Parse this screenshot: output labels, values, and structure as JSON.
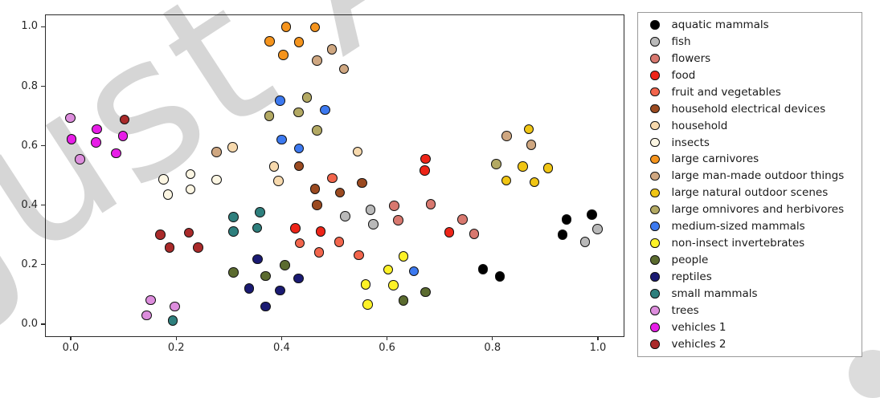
{
  "watermark": {
    "text": "Just Accepted"
  },
  "chart_data": {
    "type": "scatter",
    "title": "",
    "xlabel": "",
    "ylabel": "",
    "x_tick_labels": [
      "0.0",
      "0.2",
      "0.4",
      "0.6",
      "0.8",
      "1.0"
    ],
    "y_tick_labels": [
      "0.0",
      "0.2",
      "0.4",
      "0.6",
      "0.8",
      "1.0"
    ],
    "xlim": [
      -0.0488,
      1.0473
    ],
    "ylim": [
      -0.0378,
      1.0418
    ],
    "grid": false,
    "legend_position": "outside-right",
    "series": [
      {
        "name": "aquatic mammals",
        "color": "#000000",
        "points": [
          [
            0.941,
            0.351
          ],
          [
            0.989,
            0.367
          ],
          [
            0.934,
            0.3
          ],
          [
            0.783,
            0.184
          ],
          [
            0.815,
            0.159
          ]
        ]
      },
      {
        "name": "fish",
        "color": "#b9b9b9",
        "points": [
          [
            0.521,
            0.362
          ],
          [
            0.569,
            0.383
          ],
          [
            0.575,
            0.335
          ],
          [
            1.0,
            0.318
          ],
          [
            0.976,
            0.275
          ]
        ]
      },
      {
        "name": "flowers",
        "color": "#d8786f",
        "points": [
          [
            0.614,
            0.397
          ],
          [
            0.684,
            0.402
          ],
          [
            0.622,
            0.348
          ],
          [
            0.744,
            0.351
          ],
          [
            0.766,
            0.303
          ]
        ]
      },
      {
        "name": "food",
        "color": "#ee2418",
        "points": [
          [
            0.674,
            0.555
          ],
          [
            0.672,
            0.516
          ],
          [
            0.427,
            0.321
          ],
          [
            0.475,
            0.31
          ],
          [
            0.719,
            0.308
          ]
        ]
      },
      {
        "name": "fruit and vegetables",
        "color": "#f2654c",
        "points": [
          [
            0.497,
            0.49
          ],
          [
            0.435,
            0.272
          ],
          [
            0.51,
            0.276
          ],
          [
            0.472,
            0.24
          ],
          [
            0.547,
            0.231
          ]
        ]
      },
      {
        "name": "household electrical devices",
        "color": "#9b4a20",
        "points": [
          [
            0.434,
            0.53
          ],
          [
            0.553,
            0.474
          ],
          [
            0.464,
            0.453
          ],
          [
            0.511,
            0.442
          ],
          [
            0.468,
            0.399
          ]
        ]
      },
      {
        "name": "household",
        "color": "#f7d9ad",
        "points": [
          [
            0.308,
            0.594
          ],
          [
            0.545,
            0.579
          ],
          [
            0.386,
            0.529
          ],
          [
            0.395,
            0.48
          ]
        ]
      },
      {
        "name": "insects",
        "color": "#fcf6e3",
        "points": [
          [
            0.177,
            0.486
          ],
          [
            0.228,
            0.504
          ],
          [
            0.228,
            0.452
          ],
          [
            0.185,
            0.434
          ],
          [
            0.277,
            0.485
          ]
        ]
      },
      {
        "name": "large carnivores",
        "color": "#f5941d",
        "points": [
          [
            0.409,
            0.999
          ],
          [
            0.464,
            0.998
          ],
          [
            0.378,
            0.95
          ],
          [
            0.434,
            0.947
          ],
          [
            0.404,
            0.904
          ]
        ]
      },
      {
        "name": "large man-made outdoor things",
        "color": "#cfa781",
        "points": [
          [
            0.496,
            0.923
          ],
          [
            0.468,
            0.886
          ],
          [
            0.519,
            0.857
          ],
          [
            0.828,
            0.632
          ],
          [
            0.874,
            0.602
          ],
          [
            0.277,
            0.578
          ]
        ]
      },
      {
        "name": "large natural outdoor scenes",
        "color": "#f0c514",
        "points": [
          [
            0.87,
            0.654
          ],
          [
            0.858,
            0.529
          ],
          [
            0.906,
            0.524
          ],
          [
            0.827,
            0.482
          ],
          [
            0.88,
            0.476
          ]
        ]
      },
      {
        "name": "large omnivores and herbivores",
        "color": "#b3a963",
        "points": [
          [
            0.449,
            0.761
          ],
          [
            0.433,
            0.711
          ],
          [
            0.377,
            0.699
          ],
          [
            0.468,
            0.65
          ],
          [
            0.808,
            0.537
          ]
        ]
      },
      {
        "name": "medium-sized mammals",
        "color": "#3c79f0",
        "points": [
          [
            0.398,
            0.751
          ],
          [
            0.483,
            0.72
          ],
          [
            0.401,
            0.62
          ],
          [
            0.434,
            0.59
          ],
          [
            0.652,
            0.177
          ]
        ]
      },
      {
        "name": "non-insect invertebrates",
        "color": "#fdf228",
        "points": [
          [
            0.632,
            0.227
          ],
          [
            0.603,
            0.182
          ],
          [
            0.56,
            0.132
          ],
          [
            0.613,
            0.13
          ],
          [
            0.564,
            0.065
          ]
        ]
      },
      {
        "name": "people",
        "color": "#5b6b2f",
        "points": [
          [
            0.407,
            0.197
          ],
          [
            0.309,
            0.173
          ],
          [
            0.37,
            0.161
          ],
          [
            0.674,
            0.107
          ],
          [
            0.632,
            0.078
          ]
        ]
      },
      {
        "name": "reptiles",
        "color": "#1a1a72",
        "points": [
          [
            0.355,
            0.218
          ],
          [
            0.433,
            0.152
          ],
          [
            0.339,
            0.119
          ],
          [
            0.398,
            0.112
          ],
          [
            0.37,
            0.058
          ]
        ]
      },
      {
        "name": "small mammals",
        "color": "#2e7f7d",
        "points": [
          [
            0.309,
            0.359
          ],
          [
            0.36,
            0.375
          ],
          [
            0.354,
            0.323
          ],
          [
            0.309,
            0.31
          ],
          [
            0.194,
            0.011
          ]
        ]
      },
      {
        "name": "trees",
        "color": "#dd8ddd",
        "points": [
          [
            0.0,
            0.693
          ],
          [
            0.018,
            0.553
          ],
          [
            0.152,
            0.08
          ],
          [
            0.198,
            0.058
          ],
          [
            0.145,
            0.029
          ]
        ]
      },
      {
        "name": "vehicles 1",
        "color": "#e71de7",
        "points": [
          [
            0.05,
            0.655
          ],
          [
            0.1,
            0.632
          ],
          [
            0.002,
            0.621
          ],
          [
            0.049,
            0.61
          ],
          [
            0.087,
            0.573
          ]
        ]
      },
      {
        "name": "vehicles 2",
        "color": "#aa2a2a",
        "points": [
          [
            0.103,
            0.687
          ],
          [
            0.171,
            0.3
          ],
          [
            0.225,
            0.306
          ],
          [
            0.188,
            0.256
          ],
          [
            0.242,
            0.256
          ]
        ]
      }
    ]
  }
}
